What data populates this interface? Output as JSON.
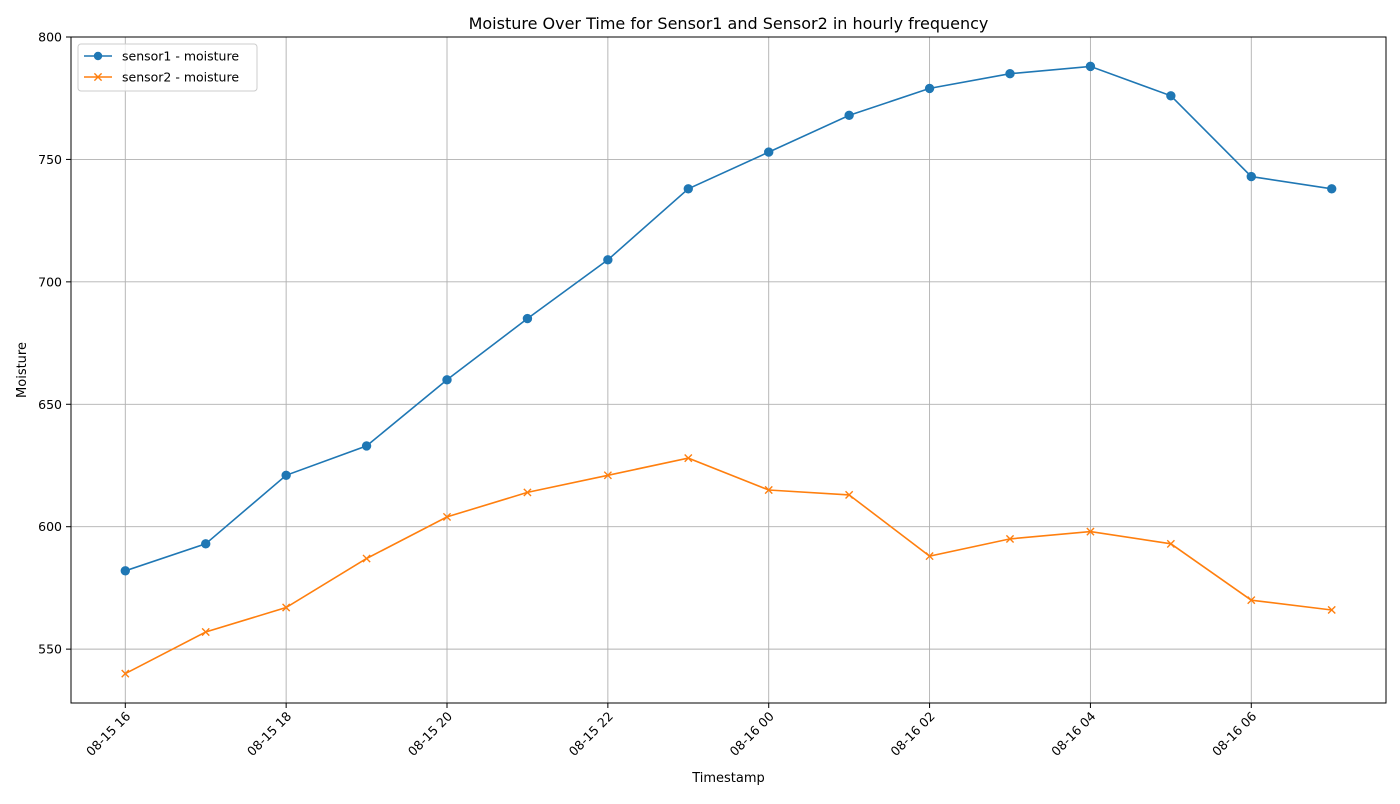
{
  "chart_data": {
    "type": "line",
    "title": "Moisture Over Time for Sensor1 and Sensor2 in hourly frequency",
    "xlabel": "Timestamp",
    "ylabel": "Moisture",
    "x": [
      "2024-08-15 16:00",
      "2024-08-15 17:00",
      "2024-08-15 18:00",
      "2024-08-15 19:00",
      "2024-08-15 20:00",
      "2024-08-15 21:00",
      "2024-08-15 22:00",
      "2024-08-15 23:00",
      "2024-08-16 00:00",
      "2024-08-16 01:00",
      "2024-08-16 02:00",
      "2024-08-16 03:00",
      "2024-08-16 04:00",
      "2024-08-16 05:00",
      "2024-08-16 06:00",
      "2024-08-16 07:00"
    ],
    "xticks": [
      "08-15 16",
      "08-15 18",
      "08-15 20",
      "08-15 22",
      "08-16 00",
      "08-16 02",
      "08-16 04",
      "08-16 06"
    ],
    "ylim": [
      528,
      800
    ],
    "yticks": [
      550,
      600,
      650,
      700,
      750,
      800
    ],
    "grid": true,
    "legend_position": "upper-left",
    "series": [
      {
        "name": "sensor1 - moisture",
        "color": "#1f77b4",
        "marker": "circle",
        "values": [
          582,
          593,
          621,
          633,
          660,
          685,
          709,
          738,
          753,
          768,
          779,
          785,
          788,
          776,
          743,
          738
        ]
      },
      {
        "name": "sensor2 - moisture",
        "color": "#ff7f0e",
        "marker": "x",
        "values": [
          540,
          557,
          567,
          587,
          604,
          614,
          621,
          628,
          615,
          613,
          588,
          595,
          598,
          593,
          570,
          566
        ]
      }
    ]
  }
}
